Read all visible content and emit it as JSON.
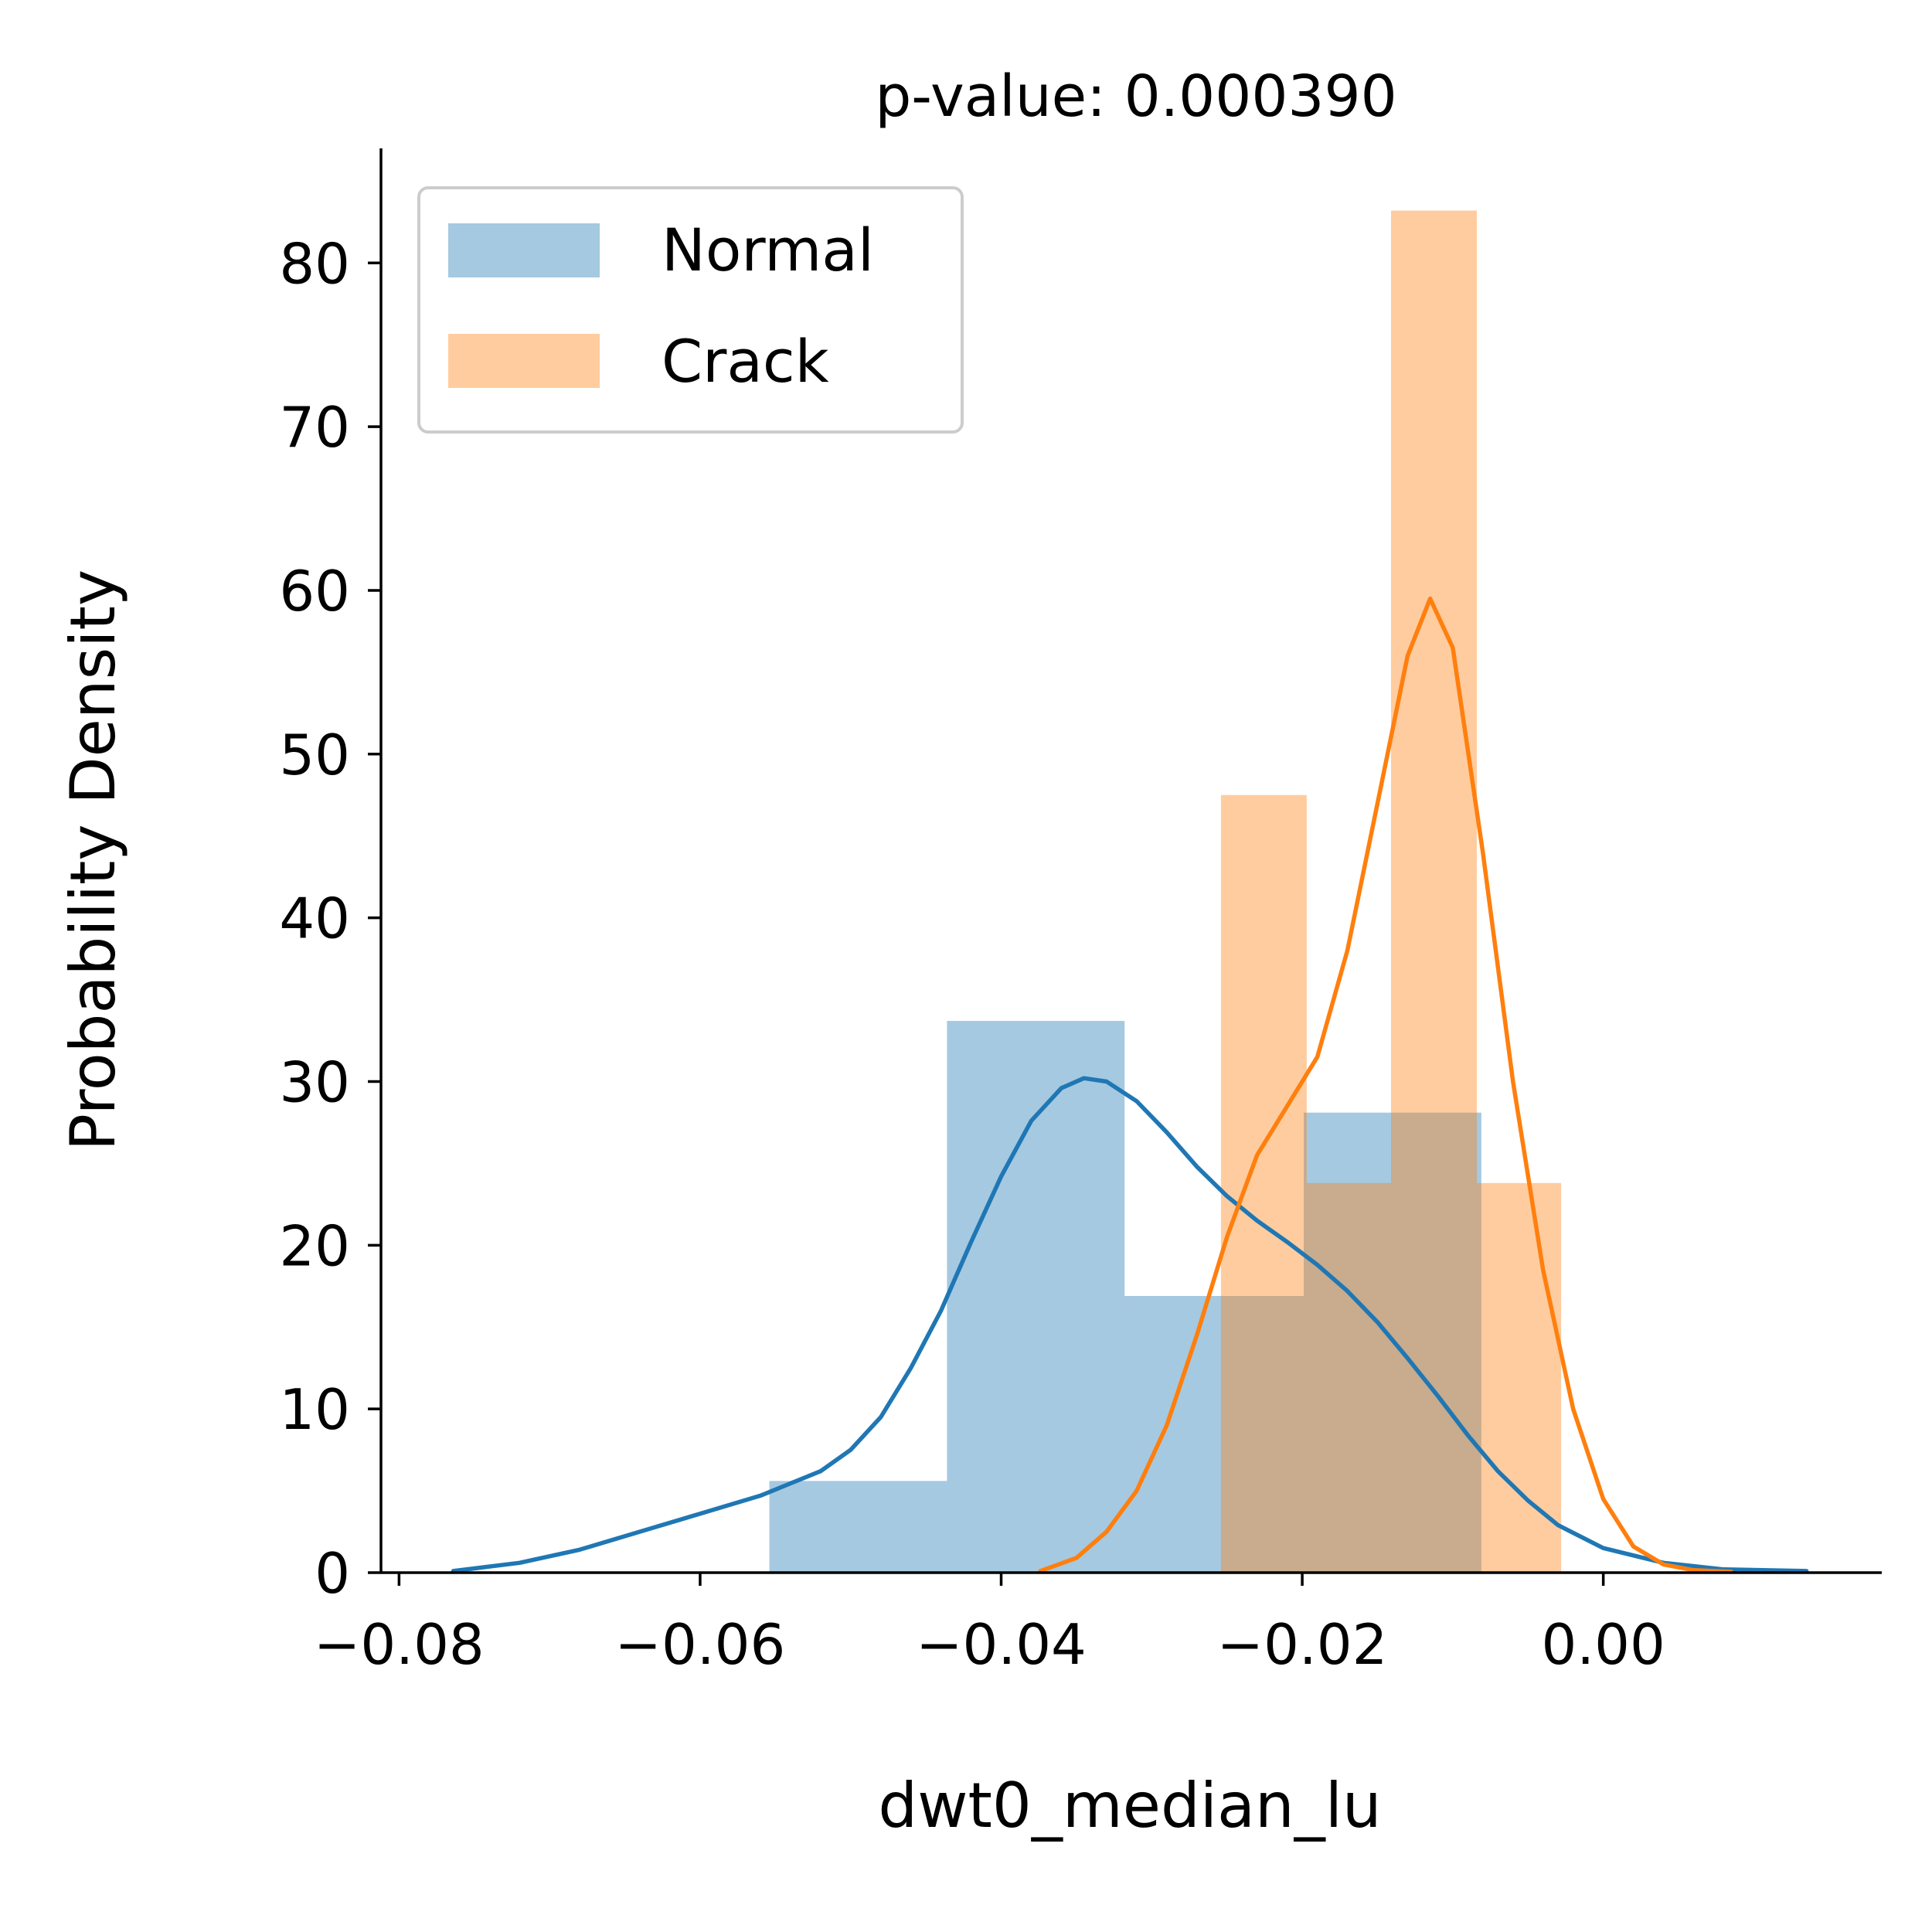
{
  "chart_data": {
    "type": "bar",
    "title": "p-value: 0.000390",
    "xlabel": "dwt0_median_lu",
    "ylabel": "Probability Density",
    "xlim": [
      -0.0812,
      0.0185
    ],
    "ylim": [
      0,
      87
    ],
    "x_ticks": [
      -0.08,
      -0.06,
      -0.04,
      -0.02,
      0.0
    ],
    "x_tick_labels": [
      "−0.08",
      "−0.06",
      "−0.04",
      "−0.02",
      "0.00"
    ],
    "y_ticks": [
      0,
      10,
      20,
      30,
      40,
      50,
      60,
      70,
      80
    ],
    "y_tick_labels": [
      "0",
      "10",
      "20",
      "30",
      "40",
      "50",
      "60",
      "70",
      "80"
    ],
    "grid": false,
    "legend_position": "upper-left",
    "series": [
      {
        "name": "Normal",
        "color": "#1f77b4",
        "hist_alpha": 0.4,
        "bins": [
          {
            "x0": -0.0554,
            "x1": -0.0436,
            "density": 5.6
          },
          {
            "x0": -0.0436,
            "x1": -0.0318,
            "density": 33.7
          },
          {
            "x0": -0.0318,
            "x1": -0.0199,
            "density": 16.9
          },
          {
            "x0": -0.0199,
            "x1": -0.0081,
            "density": 28.1
          }
        ],
        "kde": [
          [
            -0.0764,
            0.1
          ],
          [
            -0.072,
            0.6
          ],
          [
            -0.068,
            1.4
          ],
          [
            -0.064,
            2.5
          ],
          [
            -0.06,
            3.6
          ],
          [
            -0.056,
            4.7
          ],
          [
            -0.052,
            6.2
          ],
          [
            -0.05,
            7.5
          ],
          [
            -0.048,
            9.5
          ],
          [
            -0.046,
            12.5
          ],
          [
            -0.044,
            16.0
          ],
          [
            -0.042,
            20.2
          ],
          [
            -0.04,
            24.2
          ],
          [
            -0.038,
            27.6
          ],
          [
            -0.036,
            29.6
          ],
          [
            -0.0345,
            30.2
          ],
          [
            -0.033,
            30.0
          ],
          [
            -0.031,
            28.8
          ],
          [
            -0.029,
            26.9
          ],
          [
            -0.027,
            24.8
          ],
          [
            -0.025,
            23.0
          ],
          [
            -0.023,
            21.5
          ],
          [
            -0.021,
            20.2
          ],
          [
            -0.019,
            18.8
          ],
          [
            -0.017,
            17.2
          ],
          [
            -0.015,
            15.3
          ],
          [
            -0.013,
            13.1
          ],
          [
            -0.011,
            10.8
          ],
          [
            -0.009,
            8.4
          ],
          [
            -0.007,
            6.2
          ],
          [
            -0.005,
            4.4
          ],
          [
            -0.003,
            2.9
          ],
          [
            0.0,
            1.5
          ],
          [
            0.004,
            0.6
          ],
          [
            0.008,
            0.2
          ],
          [
            0.0135,
            0.1
          ]
        ]
      },
      {
        "name": "Crack",
        "color": "#ff7f0e",
        "hist_alpha": 0.4,
        "bins": [
          {
            "x0": -0.0254,
            "x1": -0.0197,
            "density": 47.5
          },
          {
            "x0": -0.0197,
            "x1": -0.0141,
            "density": 23.8
          },
          {
            "x0": -0.0141,
            "x1": -0.0084,
            "density": 83.2
          },
          {
            "x0": -0.0084,
            "x1": -0.0028,
            "density": 23.8
          }
        ],
        "kde": [
          [
            -0.0374,
            0.1
          ],
          [
            -0.035,
            0.9
          ],
          [
            -0.033,
            2.5
          ],
          [
            -0.031,
            5.0
          ],
          [
            -0.029,
            9.0
          ],
          [
            -0.027,
            14.5
          ],
          [
            -0.025,
            20.5
          ],
          [
            -0.023,
            25.5
          ],
          [
            -0.021,
            28.5
          ],
          [
            -0.019,
            31.5
          ],
          [
            -0.017,
            38.0
          ],
          [
            -0.015,
            47.0
          ],
          [
            -0.013,
            56.0
          ],
          [
            -0.0115,
            59.5
          ],
          [
            -0.01,
            56.5
          ],
          [
            -0.008,
            44.0
          ],
          [
            -0.006,
            30.0
          ],
          [
            -0.004,
            18.5
          ],
          [
            -0.002,
            10.0
          ],
          [
            0.0,
            4.5
          ],
          [
            0.002,
            1.6
          ],
          [
            0.004,
            0.5
          ],
          [
            0.006,
            0.15
          ],
          [
            0.0085,
            0.05
          ]
        ]
      }
    ]
  }
}
